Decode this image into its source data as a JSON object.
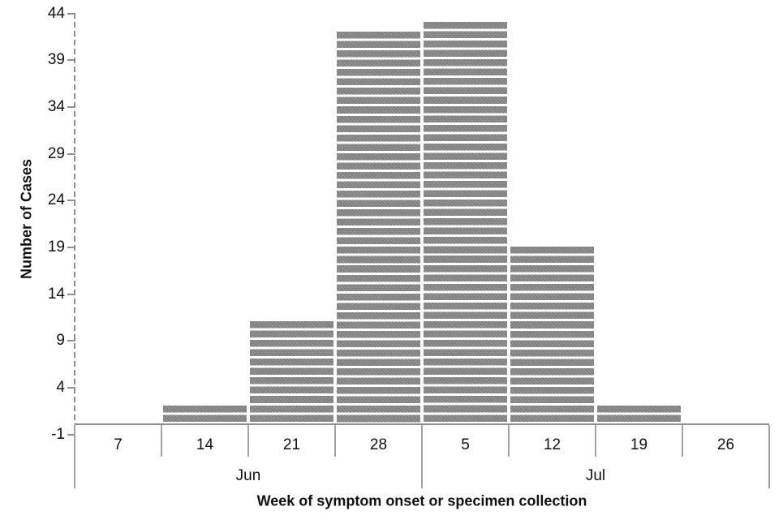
{
  "chart_data": {
    "type": "bar",
    "subtype": "epidemic-curve-case-stripes",
    "title": "",
    "xlabel": "Week of symptom onset or specimen collection",
    "ylabel": "Number of Cases",
    "categories": [
      "Jun 7",
      "Jun 14",
      "Jun 21",
      "Jun 28",
      "Jul 5",
      "Jul 12",
      "Jul 19",
      "Jul 26"
    ],
    "week_labels": [
      "7",
      "14",
      "21",
      "28",
      "5",
      "12",
      "19",
      "26"
    ],
    "month_groups": [
      {
        "label": "Jun",
        "weeks": 4
      },
      {
        "label": "Jul",
        "weeks": 4
      }
    ],
    "values": [
      0,
      2,
      11,
      42,
      43,
      19,
      2,
      0
    ],
    "yticks": [
      -1,
      4,
      9,
      14,
      19,
      24,
      29,
      34,
      39,
      44
    ],
    "ylim": [
      -1,
      44
    ],
    "legend": "none",
    "grid": "off",
    "bar_color": "#8c8c8c",
    "bar_gap_color": "#ffffff",
    "axis_color": "#8f8f8f",
    "separator_color": "#a3a3a3",
    "text_color": "#111111"
  }
}
